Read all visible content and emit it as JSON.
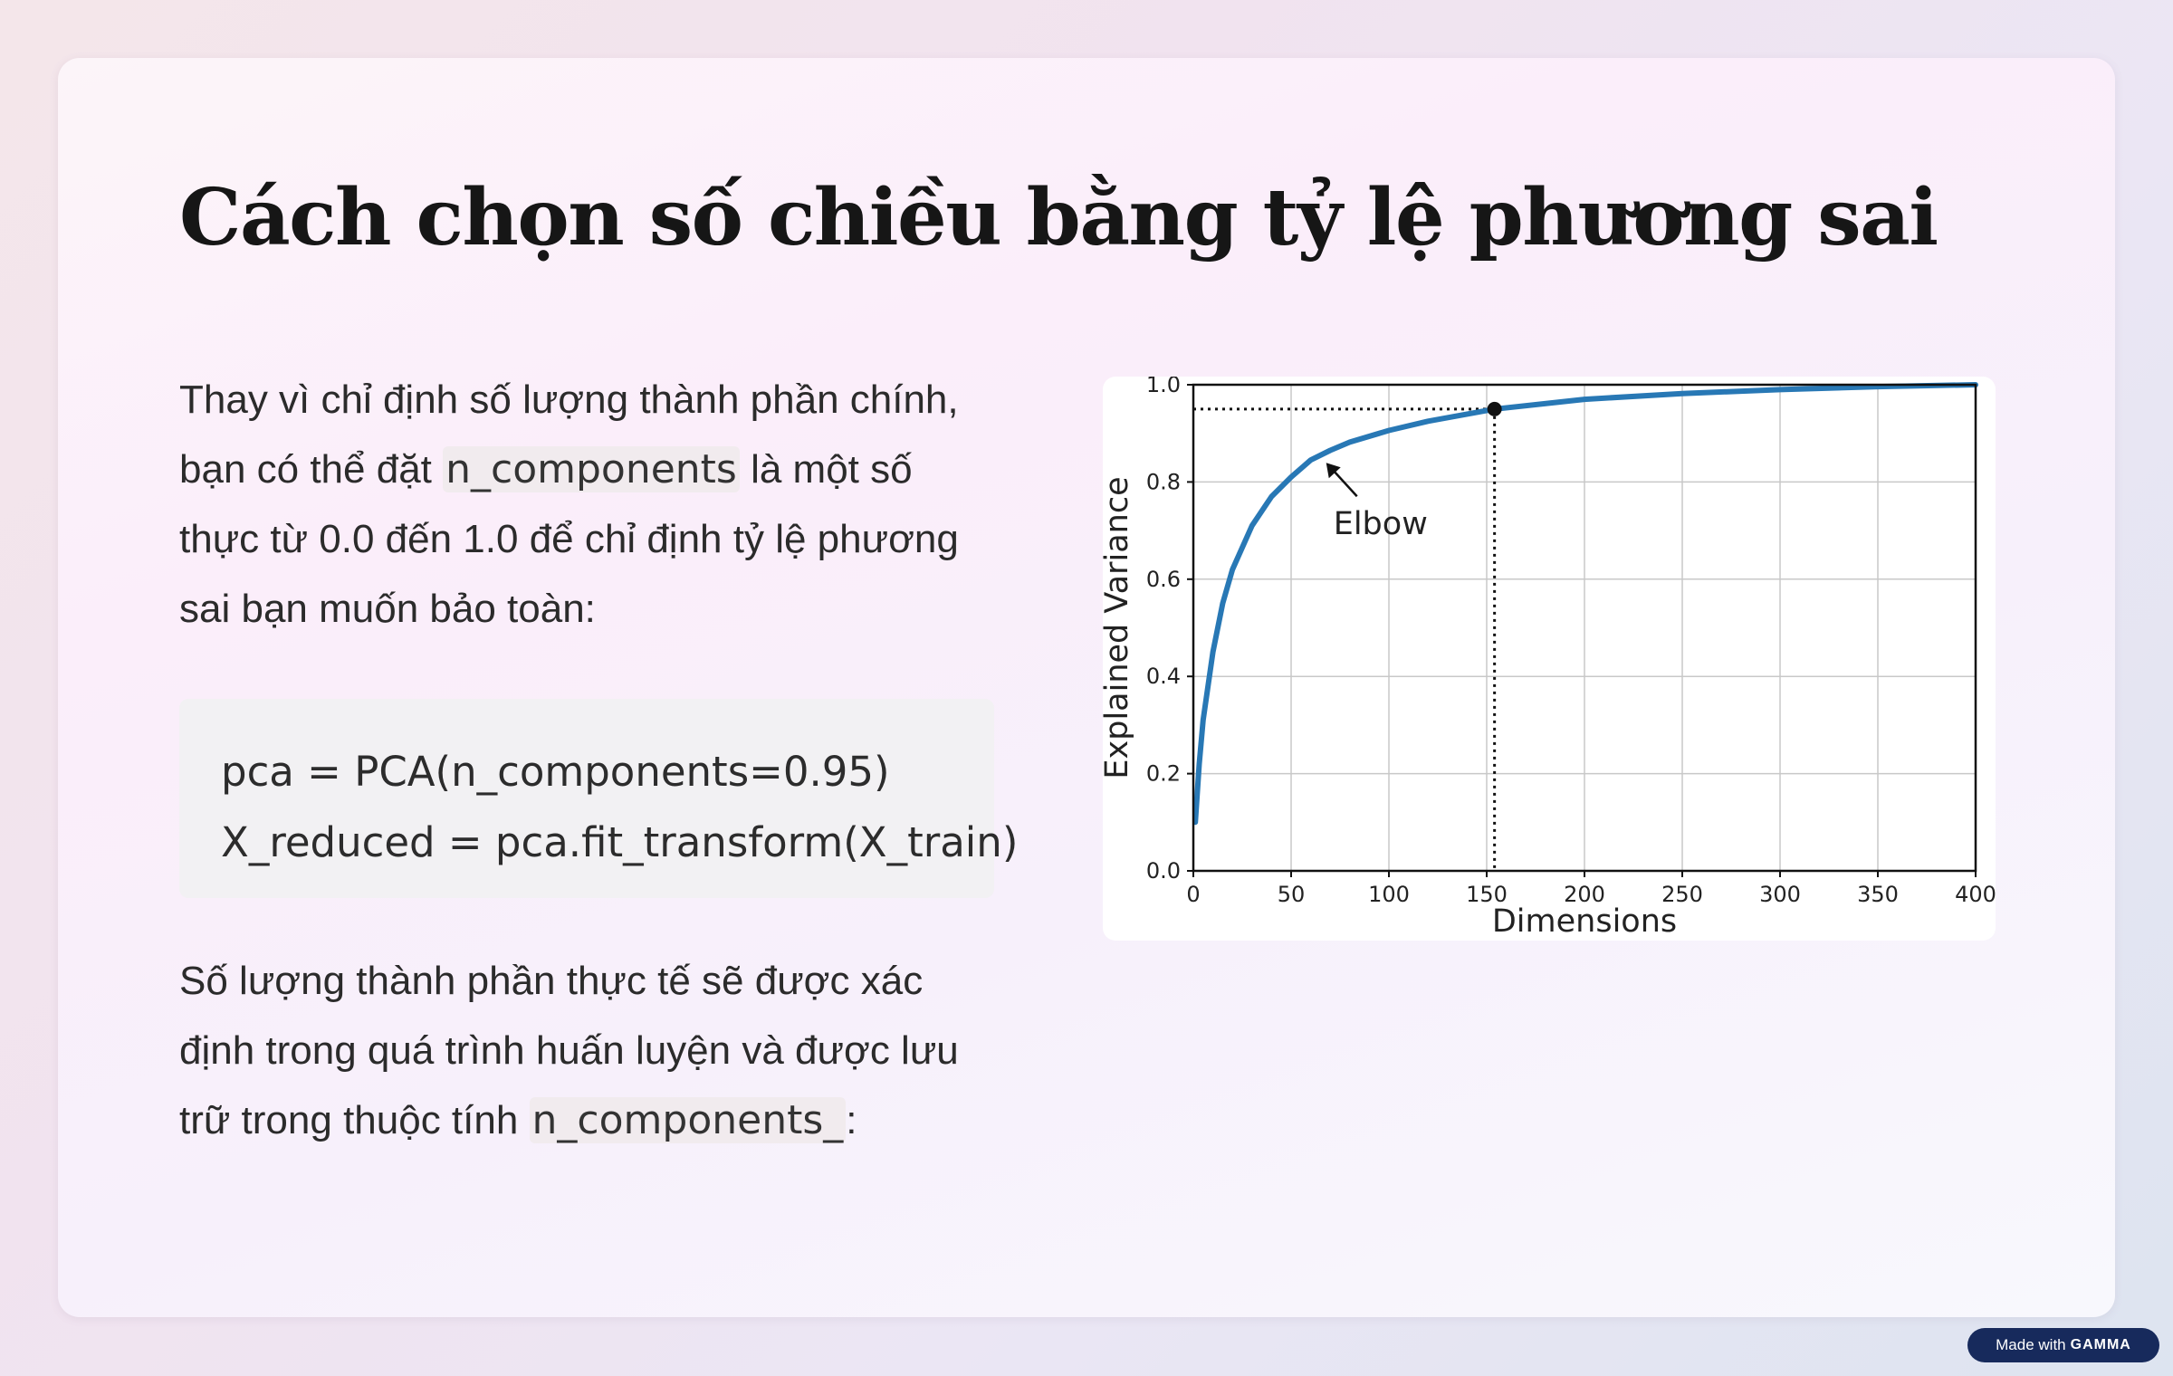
{
  "slide": {
    "title": "Cách chọn số chiều bằng tỷ lệ phương sai",
    "intro": {
      "before": "Thay vì chỉ định số lượng thành phần chính, bạn có thể đặt ",
      "code": "n_components",
      "after": " là một số thực từ 0.0 đến 1.0 để chỉ định tỷ lệ phương sai bạn muốn bảo toàn:"
    },
    "code_lines": [
      "pca = PCA(n_components=0.95)",
      "X_reduced = pca.fit_transform(X_train)"
    ],
    "outro": {
      "before": "Số lượng thành phần thực tế sẽ được xác định trong quá trình huấn luyện và được lưu trữ trong thuộc tính ",
      "code": "n_components_",
      "after": ":"
    }
  },
  "chart_data": {
    "type": "line",
    "title": "",
    "xlabel": "Dimensions",
    "ylabel": "Explained Variance",
    "xlim": [
      0,
      400
    ],
    "ylim": [
      0.0,
      1.0
    ],
    "xticks": [
      0,
      50,
      100,
      150,
      200,
      250,
      300,
      350,
      400
    ],
    "yticks": [
      "0.0",
      "0.2",
      "0.4",
      "0.6",
      "0.8",
      "1.0"
    ],
    "grid": true,
    "line_color": "#2878b5",
    "series": [
      {
        "x": [
          1,
          3,
          5,
          10,
          15,
          20,
          30,
          40,
          50,
          60,
          70,
          80,
          100,
          120,
          154,
          200,
          250,
          300,
          350,
          400
        ],
        "values": [
          0.1,
          0.22,
          0.31,
          0.45,
          0.55,
          0.62,
          0.71,
          0.77,
          0.81,
          0.845,
          0.865,
          0.882,
          0.906,
          0.925,
          0.95,
          0.97,
          0.982,
          0.99,
          0.996,
          1.0
        ]
      }
    ],
    "threshold_point": {
      "x": 154,
      "y": 0.95
    },
    "annotation": {
      "text": "Elbow",
      "x": 67,
      "y": 0.845
    }
  },
  "badge": {
    "prefix": "Made with",
    "brand": "GAMMA"
  }
}
